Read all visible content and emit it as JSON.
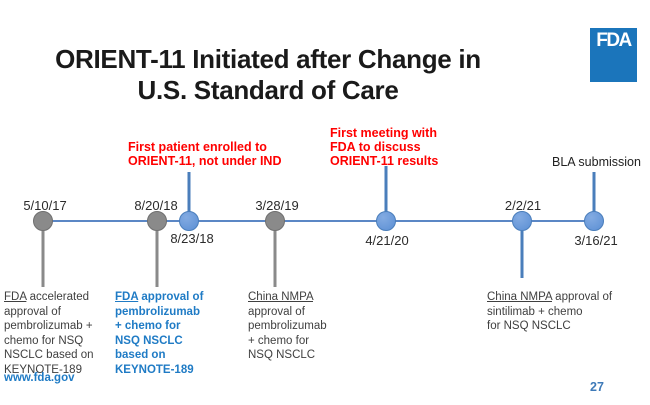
{
  "slide": {
    "title": "ORIENT-11 Initiated after Change in\nU.S. Standard of Care",
    "logo_text": "FDA",
    "footer_link": "www.fda.gov",
    "page_number": "27"
  },
  "timeline": {
    "events": [
      {
        "date": "5/10/17",
        "marker": "gray",
        "label_position": "above"
      },
      {
        "date": "8/20/18",
        "marker": "gray",
        "label_position": "above"
      },
      {
        "date": "8/23/18",
        "marker": "blue",
        "label_position": "below"
      },
      {
        "date": "3/28/19",
        "marker": "gray",
        "label_position": "above"
      },
      {
        "date": "4/21/20",
        "marker": "blue",
        "label_position": "below"
      },
      {
        "date": "2/2/21",
        "marker": "blue",
        "label_position": "above"
      },
      {
        "date": "3/16/21",
        "marker": "blue",
        "label_position": "below"
      }
    ],
    "bla_label": "BLA submission"
  },
  "annotations": {
    "enrolled": "First patient enrolled to\nORIENT-11, not under IND",
    "meeting": "First meeting with\nFDA to discuss\nORIENT-11 results"
  },
  "callouts": [
    {
      "lead": "FDA",
      "rest": " accelerated\napproval of\npembrolizumab +\nchemo for NSQ\nNSCLC based on\nKEYNOTE-189"
    },
    {
      "lead": "FDA",
      "rest": " approval of\npembrolizumab\n+ chemo for\nNSQ NSCLC\nbased on\nKEYNOTE-189"
    },
    {
      "lead": "China NMPA",
      "rest": " approval of\npembrolizumab\n+ chemo for\nNSQ NSCLC"
    },
    {
      "lead": "China NMPA",
      "rest": " approval of\nsintilimab + chemo\nfor NSQ NSCLC"
    }
  ],
  "colors": {
    "fda_logo_blue": "#1b75bb",
    "timeline_blue": "#5b87c5",
    "blue_dot": "#5b8fd4",
    "gray_dot": "#8a8a8a",
    "annotation_red": "#ff0000",
    "callout_blue": "#1f7bc5",
    "body_text": "#404040",
    "page_number_blue": "#3e7ab8"
  }
}
